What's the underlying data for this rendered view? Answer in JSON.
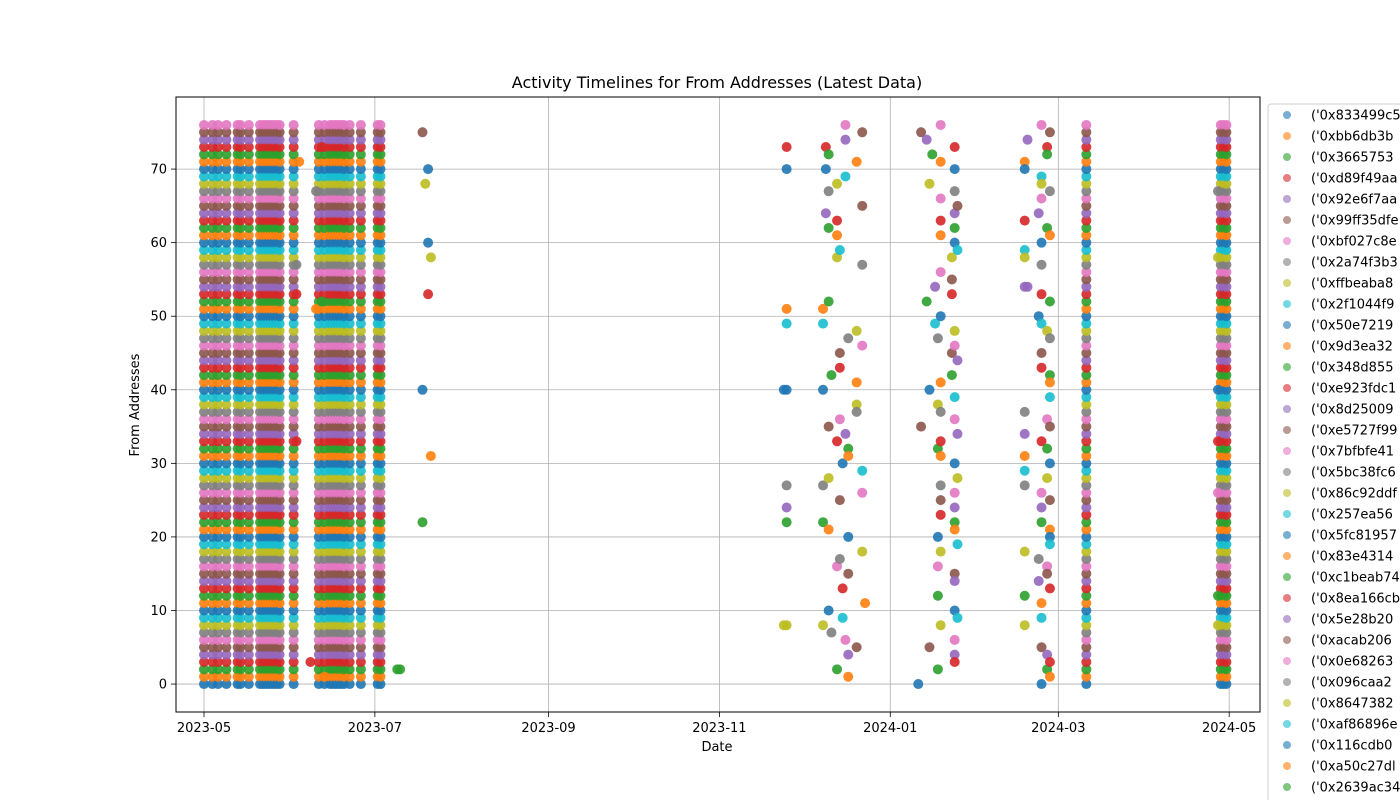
{
  "chart_data": {
    "type": "scatter",
    "title": "Activity Timelines for From Addresses (Latest Data)",
    "xlabel": "Date",
    "ylabel": "From Addresses",
    "xlim": [
      "2023-04-21",
      "2024-05-12"
    ],
    "ylim": [
      -3.8,
      79.8
    ],
    "x_ticks": [
      "2023-05",
      "2023-07",
      "2023-09",
      "2023-11",
      "2024-01",
      "2024-03",
      "2024-05"
    ],
    "y_ticks": [
      0,
      10,
      20,
      30,
      40,
      50,
      60,
      70
    ],
    "grid": true,
    "legend_position": "outside-right",
    "color_cycle": [
      "#1f77b4",
      "#ff7f0e",
      "#2ca02c",
      "#d62728",
      "#9467bd",
      "#8c564b",
      "#e377c2",
      "#7f7f7f",
      "#bcbd22",
      "#17becf"
    ],
    "legend_entries": [
      "('0x833499c5",
      "('0xbb6db3b",
      "('0x3665753",
      "('0xd89f49aa",
      "('0x92e6f7aa",
      "('0x99ff35dfe",
      "('0xbf027c8e",
      "('0x2a74f3b3",
      "('0xffbeaba8",
      "('0x2f1044f9",
      "('0x50e7219",
      "('0x9d3ea32",
      "('0x348d855",
      "('0xe923fdc1",
      "('0x8d25009",
      "('0xe5727f99",
      "('0x7bfbfe41",
      "('0x5bc38fc6",
      "('0x86c92ddf",
      "('0x257ea56",
      "('0x5fc81957",
      "('0x83e4314",
      "('0xc1beab74",
      "('0x8ea166cb",
      "('0x5e28b20",
      "('0xacab206",
      "('0x0e68263",
      "('0x096caa2",
      "('0x8647382",
      "('0xaf86896e",
      "('0x116cdb0",
      "('0xa50c27dl",
      "('0x2639ac34"
    ],
    "series_count": 77,
    "active_dates": [
      "2023-05-01",
      "2023-05-04",
      "2023-05-06",
      "2023-05-09",
      "2023-05-13",
      "2023-05-14",
      "2023-05-17",
      "2023-05-21",
      "2023-05-22",
      "2023-05-23",
      "2023-05-24",
      "2023-05-25",
      "2023-05-26",
      "2023-05-27",
      "2023-05-28",
      "2023-06-02",
      "2023-06-11",
      "2023-06-13",
      "2023-06-15",
      "2023-06-16",
      "2023-06-17",
      "2023-06-18",
      "2023-06-19",
      "2023-06-20",
      "2023-06-22",
      "2023-06-26",
      "2023-07-02",
      "2023-07-03",
      "2024-03-11",
      "2024-04-28",
      "2024-04-29",
      "2024-04-30"
    ],
    "sparse_events": [
      {
        "x": "2023-06-04",
        "y": 71
      },
      {
        "x": "2023-06-03",
        "y": 57
      },
      {
        "x": "2023-06-03",
        "y": 53
      },
      {
        "x": "2023-06-03",
        "y": 33
      },
      {
        "x": "2023-06-10",
        "y": 67
      },
      {
        "x": "2023-06-12",
        "y": 73
      },
      {
        "x": "2023-06-10",
        "y": 51
      },
      {
        "x": "2023-06-12",
        "y": 52
      },
      {
        "x": "2023-06-08",
        "y": 3
      },
      {
        "x": "2023-06-13",
        "y": 1
      },
      {
        "x": "2023-07-10",
        "y": 2
      },
      {
        "x": "2023-07-09",
        "y": 2
      },
      {
        "x": "2023-07-18",
        "y": 75
      },
      {
        "x": "2023-07-18",
        "y": 40
      },
      {
        "x": "2023-07-18",
        "y": 22
      },
      {
        "x": "2023-07-19",
        "y": 68
      },
      {
        "x": "2023-07-20",
        "y": 70
      },
      {
        "x": "2023-07-20",
        "y": 60
      },
      {
        "x": "2023-07-21",
        "y": 58
      },
      {
        "x": "2023-07-20",
        "y": 53
      },
      {
        "x": "2023-07-21",
        "y": 31
      },
      {
        "x": "2023-11-25",
        "y": 73
      },
      {
        "x": "2023-11-25",
        "y": 70
      },
      {
        "x": "2023-11-25",
        "y": 51
      },
      {
        "x": "2023-11-25",
        "y": 49
      },
      {
        "x": "2023-11-25",
        "y": 40
      },
      {
        "x": "2023-11-25",
        "y": 27
      },
      {
        "x": "2023-11-25",
        "y": 24
      },
      {
        "x": "2023-11-25",
        "y": 22
      },
      {
        "x": "2023-11-25",
        "y": 8
      },
      {
        "x": "2023-11-24",
        "y": 40
      },
      {
        "x": "2023-11-24",
        "y": 8
      },
      {
        "x": "2023-12-08",
        "y": 51
      },
      {
        "x": "2023-12-08",
        "y": 49
      },
      {
        "x": "2023-12-08",
        "y": 40
      },
      {
        "x": "2023-12-08",
        "y": 27
      },
      {
        "x": "2023-12-08",
        "y": 22
      },
      {
        "x": "2023-12-08",
        "y": 8
      },
      {
        "x": "2023-12-09",
        "y": 73
      },
      {
        "x": "2023-12-09",
        "y": 70
      },
      {
        "x": "2023-12-09",
        "y": 64
      },
      {
        "x": "2023-12-10",
        "y": 72
      },
      {
        "x": "2023-12-10",
        "y": 67
      },
      {
        "x": "2023-12-10",
        "y": 62
      },
      {
        "x": "2023-12-10",
        "y": 52
      },
      {
        "x": "2023-12-11",
        "y": 42
      },
      {
        "x": "2023-12-10",
        "y": 35
      },
      {
        "x": "2023-12-10",
        "y": 28
      },
      {
        "x": "2023-12-10",
        "y": 21
      },
      {
        "x": "2023-12-10",
        "y": 10
      },
      {
        "x": "2023-12-11",
        "y": 7
      },
      {
        "x": "2023-12-13",
        "y": 68
      },
      {
        "x": "2023-12-13",
        "y": 63
      },
      {
        "x": "2023-12-13",
        "y": 61
      },
      {
        "x": "2023-12-13",
        "y": 58
      },
      {
        "x": "2023-12-13",
        "y": 33
      },
      {
        "x": "2023-12-13",
        "y": 16
      },
      {
        "x": "2023-12-13",
        "y": 2
      },
      {
        "x": "2023-12-14",
        "y": 59
      },
      {
        "x": "2023-12-14",
        "y": 45
      },
      {
        "x": "2023-12-14",
        "y": 43
      },
      {
        "x": "2023-12-14",
        "y": 36
      },
      {
        "x": "2023-12-14",
        "y": 25
      },
      {
        "x": "2023-12-14",
        "y": 17
      },
      {
        "x": "2023-12-15",
        "y": 13
      },
      {
        "x": "2023-12-15",
        "y": 9
      },
      {
        "x": "2023-12-15",
        "y": 30
      },
      {
        "x": "2023-12-16",
        "y": 69
      },
      {
        "x": "2023-12-16",
        "y": 76
      },
      {
        "x": "2023-12-16",
        "y": 74
      },
      {
        "x": "2023-12-16",
        "y": 34
      },
      {
        "x": "2023-12-16",
        "y": 6
      },
      {
        "x": "2023-12-17",
        "y": 47
      },
      {
        "x": "2023-12-17",
        "y": 32
      },
      {
        "x": "2023-12-17",
        "y": 31
      },
      {
        "x": "2023-12-17",
        "y": 20
      },
      {
        "x": "2023-12-17",
        "y": 15
      },
      {
        "x": "2023-12-17",
        "y": 4
      },
      {
        "x": "2023-12-17",
        "y": 1
      },
      {
        "x": "2023-12-20",
        "y": 71
      },
      {
        "x": "2023-12-20",
        "y": 48
      },
      {
        "x": "2023-12-20",
        "y": 41
      },
      {
        "x": "2023-12-20",
        "y": 38
      },
      {
        "x": "2023-12-20",
        "y": 37
      },
      {
        "x": "2023-12-20",
        "y": 5
      },
      {
        "x": "2023-12-22",
        "y": 75
      },
      {
        "x": "2023-12-22",
        "y": 65
      },
      {
        "x": "2023-12-22",
        "y": 57
      },
      {
        "x": "2023-12-22",
        "y": 46
      },
      {
        "x": "2023-12-22",
        "y": 29
      },
      {
        "x": "2023-12-22",
        "y": 26
      },
      {
        "x": "2023-12-22",
        "y": 18
      },
      {
        "x": "2023-12-23",
        "y": 11
      },
      {
        "x": "2024-01-12",
        "y": 75
      },
      {
        "x": "2024-01-12",
        "y": 35
      },
      {
        "x": "2024-01-11",
        "y": 0
      },
      {
        "x": "2024-01-14",
        "y": 74
      },
      {
        "x": "2024-01-14",
        "y": 52
      },
      {
        "x": "2024-01-15",
        "y": 68
      },
      {
        "x": "2024-01-15",
        "y": 40
      },
      {
        "x": "2024-01-15",
        "y": 5
      },
      {
        "x": "2024-01-16",
        "y": 72
      },
      {
        "x": "2024-01-17",
        "y": 54
      },
      {
        "x": "2024-01-17",
        "y": 49
      },
      {
        "x": "2024-01-18",
        "y": 47
      },
      {
        "x": "2024-01-18",
        "y": 38
      },
      {
        "x": "2024-01-18",
        "y": 32
      },
      {
        "x": "2024-01-18",
        "y": 20
      },
      {
        "x": "2024-01-18",
        "y": 16
      },
      {
        "x": "2024-01-18",
        "y": 12
      },
      {
        "x": "2024-01-18",
        "y": 2
      },
      {
        "x": "2024-01-19",
        "y": 76
      },
      {
        "x": "2024-01-19",
        "y": 71
      },
      {
        "x": "2024-01-19",
        "y": 66
      },
      {
        "x": "2024-01-19",
        "y": 63
      },
      {
        "x": "2024-01-19",
        "y": 61
      },
      {
        "x": "2024-01-19",
        "y": 56
      },
      {
        "x": "2024-01-19",
        "y": 50
      },
      {
        "x": "2024-01-19",
        "y": 41
      },
      {
        "x": "2024-01-19",
        "y": 37
      },
      {
        "x": "2024-01-19",
        "y": 33
      },
      {
        "x": "2024-01-19",
        "y": 31
      },
      {
        "x": "2024-01-19",
        "y": 27
      },
      {
        "x": "2024-01-19",
        "y": 25
      },
      {
        "x": "2024-01-19",
        "y": 23
      },
      {
        "x": "2024-01-19",
        "y": 18
      },
      {
        "x": "2024-01-19",
        "y": 8
      },
      {
        "x": "2024-01-23",
        "y": 58
      },
      {
        "x": "2024-01-23",
        "y": 55
      },
      {
        "x": "2024-01-23",
        "y": 53
      },
      {
        "x": "2024-01-23",
        "y": 45
      },
      {
        "x": "2024-01-23",
        "y": 42
      },
      {
        "x": "2024-01-24",
        "y": 73
      },
      {
        "x": "2024-01-24",
        "y": 70
      },
      {
        "x": "2024-01-24",
        "y": 67
      },
      {
        "x": "2024-01-24",
        "y": 64
      },
      {
        "x": "2024-01-24",
        "y": 62
      },
      {
        "x": "2024-01-24",
        "y": 60
      },
      {
        "x": "2024-01-24",
        "y": 48
      },
      {
        "x": "2024-01-24",
        "y": 46
      },
      {
        "x": "2024-01-24",
        "y": 39
      },
      {
        "x": "2024-01-24",
        "y": 36
      },
      {
        "x": "2024-01-24",
        "y": 30
      },
      {
        "x": "2024-01-24",
        "y": 26
      },
      {
        "x": "2024-01-24",
        "y": 24
      },
      {
        "x": "2024-01-24",
        "y": 22
      },
      {
        "x": "2024-01-24",
        "y": 21
      },
      {
        "x": "2024-01-24",
        "y": 15
      },
      {
        "x": "2024-01-24",
        "y": 14
      },
      {
        "x": "2024-01-24",
        "y": 10
      },
      {
        "x": "2024-01-24",
        "y": 6
      },
      {
        "x": "2024-01-24",
        "y": 4
      },
      {
        "x": "2024-01-24",
        "y": 3
      },
      {
        "x": "2024-01-25",
        "y": 65
      },
      {
        "x": "2024-01-25",
        "y": 59
      },
      {
        "x": "2024-01-25",
        "y": 44
      },
      {
        "x": "2024-01-25",
        "y": 34
      },
      {
        "x": "2024-01-25",
        "y": 28
      },
      {
        "x": "2024-01-25",
        "y": 19
      },
      {
        "x": "2024-01-25",
        "y": 9
      },
      {
        "x": "2024-02-18",
        "y": 71
      },
      {
        "x": "2024-02-18",
        "y": 70
      },
      {
        "x": "2024-02-18",
        "y": 63
      },
      {
        "x": "2024-02-18",
        "y": 59
      },
      {
        "x": "2024-02-18",
        "y": 58
      },
      {
        "x": "2024-02-18",
        "y": 54
      },
      {
        "x": "2024-02-18",
        "y": 37
      },
      {
        "x": "2024-02-18",
        "y": 34
      },
      {
        "x": "2024-02-18",
        "y": 31
      },
      {
        "x": "2024-02-18",
        "y": 29
      },
      {
        "x": "2024-02-18",
        "y": 27
      },
      {
        "x": "2024-02-18",
        "y": 18
      },
      {
        "x": "2024-02-18",
        "y": 12
      },
      {
        "x": "2024-02-18",
        "y": 8
      },
      {
        "x": "2024-02-19",
        "y": 74
      },
      {
        "x": "2024-02-19",
        "y": 54
      },
      {
        "x": "2024-02-23",
        "y": 64
      },
      {
        "x": "2024-02-23",
        "y": 50
      },
      {
        "x": "2024-02-23",
        "y": 17
      },
      {
        "x": "2024-02-23",
        "y": 14
      },
      {
        "x": "2024-02-24",
        "y": 76
      },
      {
        "x": "2024-02-24",
        "y": 69
      },
      {
        "x": "2024-02-24",
        "y": 68
      },
      {
        "x": "2024-02-24",
        "y": 66
      },
      {
        "x": "2024-02-24",
        "y": 60
      },
      {
        "x": "2024-02-24",
        "y": 57
      },
      {
        "x": "2024-02-24",
        "y": 53
      },
      {
        "x": "2024-02-24",
        "y": 49
      },
      {
        "x": "2024-02-24",
        "y": 45
      },
      {
        "x": "2024-02-24",
        "y": 43
      },
      {
        "x": "2024-02-24",
        "y": 33
      },
      {
        "x": "2024-02-24",
        "y": 26
      },
      {
        "x": "2024-02-24",
        "y": 24
      },
      {
        "x": "2024-02-24",
        "y": 22
      },
      {
        "x": "2024-02-24",
        "y": 11
      },
      {
        "x": "2024-02-24",
        "y": 9
      },
      {
        "x": "2024-02-24",
        "y": 5
      },
      {
        "x": "2024-02-24",
        "y": 0
      },
      {
        "x": "2024-02-26",
        "y": 73
      },
      {
        "x": "2024-02-26",
        "y": 72
      },
      {
        "x": "2024-02-26",
        "y": 62
      },
      {
        "x": "2024-02-26",
        "y": 48
      },
      {
        "x": "2024-02-26",
        "y": 36
      },
      {
        "x": "2024-02-26",
        "y": 32
      },
      {
        "x": "2024-02-26",
        "y": 28
      },
      {
        "x": "2024-02-26",
        "y": 16
      },
      {
        "x": "2024-02-26",
        "y": 15
      },
      {
        "x": "2024-02-26",
        "y": 4
      },
      {
        "x": "2024-02-26",
        "y": 2
      },
      {
        "x": "2024-02-27",
        "y": 75
      },
      {
        "x": "2024-02-27",
        "y": 67
      },
      {
        "x": "2024-02-27",
        "y": 61
      },
      {
        "x": "2024-02-27",
        "y": 52
      },
      {
        "x": "2024-02-27",
        "y": 47
      },
      {
        "x": "2024-02-27",
        "y": 42
      },
      {
        "x": "2024-02-27",
        "y": 41
      },
      {
        "x": "2024-02-27",
        "y": 39
      },
      {
        "x": "2024-02-27",
        "y": 35
      },
      {
        "x": "2024-02-27",
        "y": 30
      },
      {
        "x": "2024-02-27",
        "y": 25
      },
      {
        "x": "2024-02-27",
        "y": 21
      },
      {
        "x": "2024-02-27",
        "y": 20
      },
      {
        "x": "2024-02-27",
        "y": 19
      },
      {
        "x": "2024-02-27",
        "y": 13
      },
      {
        "x": "2024-02-27",
        "y": 3
      },
      {
        "x": "2024-02-27",
        "y": 1
      },
      {
        "x": "2024-04-27",
        "y": 67
      },
      {
        "x": "2024-04-27",
        "y": 58
      },
      {
        "x": "2024-04-27",
        "y": 40
      },
      {
        "x": "2024-04-27",
        "y": 33
      },
      {
        "x": "2024-04-27",
        "y": 26
      },
      {
        "x": "2024-04-27",
        "y": 12
      },
      {
        "x": "2024-04-27",
        "y": 8
      }
    ]
  }
}
